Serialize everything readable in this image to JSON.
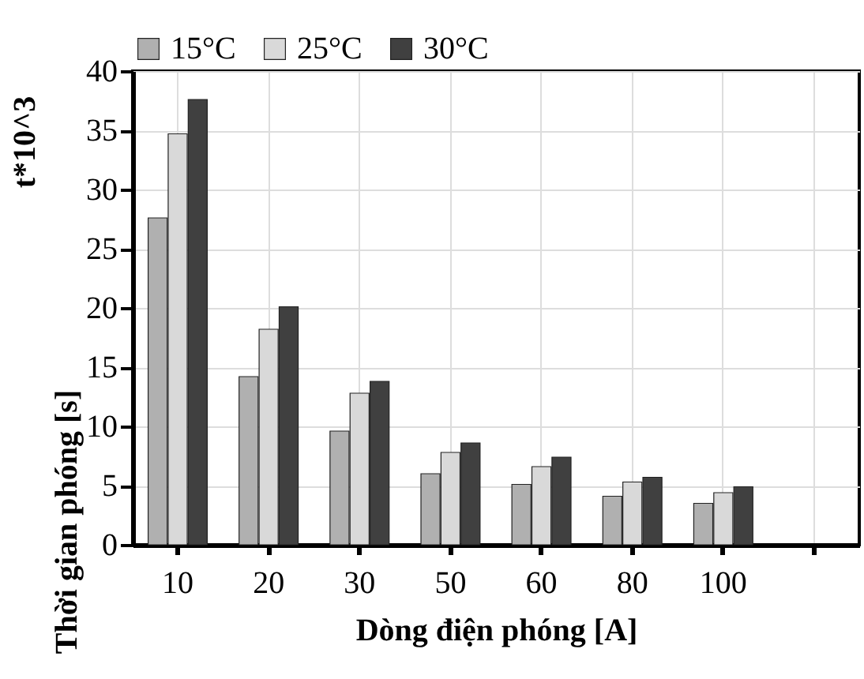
{
  "chart_data": {
    "type": "bar",
    "xlabel": "Dòng điện phóng [A]",
    "ylabel": "Thời gian phóng [s]",
    "annotations": [
      "t*10^3"
    ],
    "categories": [
      "10",
      "20",
      "30",
      "50",
      "60",
      "80",
      "100",
      null
    ],
    "series": [
      {
        "name": "15°C",
        "color": "#b0b0b0",
        "values": [
          27.6,
          14.2,
          9.6,
          6.0,
          5.1,
          4.1,
          3.5,
          null
        ]
      },
      {
        "name": "25°C",
        "color": "#d9d9d9",
        "values": [
          34.7,
          18.2,
          12.8,
          7.8,
          6.6,
          5.3,
          4.4,
          null
        ]
      },
      {
        "name": "30°C",
        "color": "#404040",
        "values": [
          37.6,
          20.1,
          13.8,
          8.6,
          7.4,
          5.7,
          4.9,
          null
        ]
      }
    ],
    "ylim": [
      0,
      40
    ],
    "yticks": [
      0,
      5,
      10,
      15,
      20,
      25,
      30,
      35,
      40
    ],
    "grid": true,
    "legend": "top"
  }
}
